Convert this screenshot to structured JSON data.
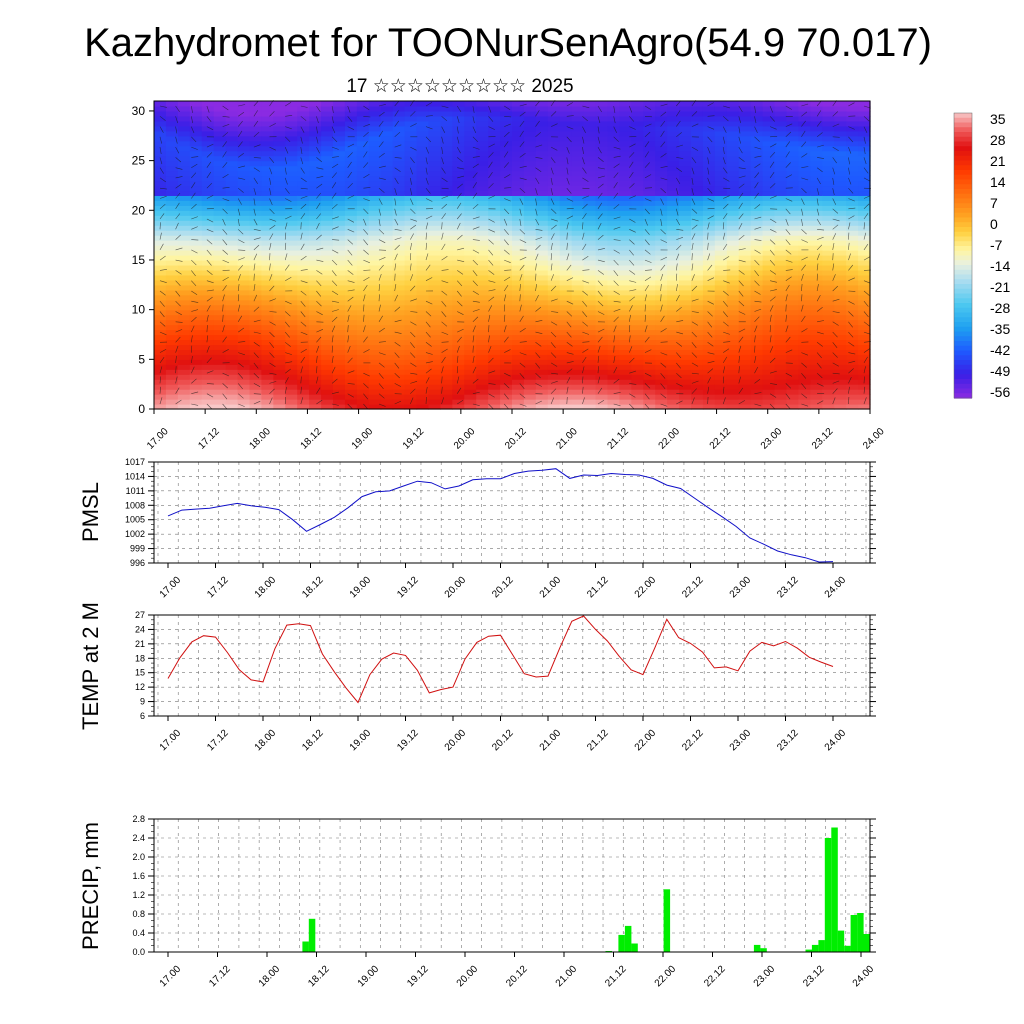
{
  "header": {
    "title": "Kazhydromet for TOONurSenAgro(54.9 70.017)",
    "subtitle": "17 ☆☆☆☆☆☆☆☆☆ 2025"
  },
  "chart_data": [
    {
      "type": "heatmap",
      "id": "temperature-wind-cross-section",
      "title": "",
      "x_ticks": [
        "17.00",
        "17.12",
        "18.00",
        "18.12",
        "19.00",
        "19.12",
        "20.00",
        "20.12",
        "21.00",
        "21.12",
        "22.00",
        "22.12",
        "23.00",
        "23.12",
        "24.00"
      ],
      "y_ticks": [
        0,
        5,
        10,
        15,
        20,
        25,
        30
      ],
      "ylim": [
        0,
        31
      ],
      "colorbar": {
        "labels": [
          "35",
          "28",
          "21",
          "14",
          "7",
          "0",
          "-7",
          "-14",
          "-21",
          "-28",
          "-35",
          "-42",
          "-49",
          "-56"
        ],
        "range": [
          -60,
          38
        ],
        "stops": [
          {
            "v": -60,
            "color": "#8a2be2"
          },
          {
            "v": -52,
            "color": "#3a1fe6"
          },
          {
            "v": -44,
            "color": "#1e5aff"
          },
          {
            "v": -36,
            "color": "#1ea0f0"
          },
          {
            "v": -28,
            "color": "#4cc8f0"
          },
          {
            "v": -20,
            "color": "#a8dcf0"
          },
          {
            "v": -14,
            "color": "#e8f0e0"
          },
          {
            "v": -9,
            "color": "#fff5a0"
          },
          {
            "v": -3,
            "color": "#ffd040"
          },
          {
            "v": 3,
            "color": "#ffa020"
          },
          {
            "v": 10,
            "color": "#ff7010"
          },
          {
            "v": 18,
            "color": "#ff3a00"
          },
          {
            "v": 26,
            "color": "#e01010"
          },
          {
            "v": 32,
            "color": "#f05a5a"
          },
          {
            "v": 38,
            "color": "#f8c8c8"
          }
        ]
      },
      "grid": false
    },
    {
      "type": "line",
      "id": "pmsl",
      "ylabel": "PMSL",
      "color": "#1010c8",
      "x_ticks": [
        "17.00",
        "17.12",
        "18.00",
        "18.12",
        "19.00",
        "19.12",
        "20.00",
        "20.12",
        "21.00",
        "21.12",
        "22.00",
        "22.12",
        "23.00",
        "23.12",
        "24.00"
      ],
      "y_ticks": [
        "1017",
        "1014",
        "1011",
        "1008",
        "1005",
        "1002",
        "999",
        "996"
      ],
      "ylim": [
        996,
        1017
      ],
      "grid": true,
      "values": [
        1005.8,
        1007,
        1007.2,
        1007.4,
        1007.9,
        1008.4,
        1007.9,
        1007.6,
        1007.1,
        1005,
        1002.6,
        1004,
        1005.5,
        1007.5,
        1009.8,
        1010.8,
        1011,
        1012,
        1013,
        1012.7,
        1011.4,
        1012,
        1013.3,
        1013.5,
        1013.5,
        1014.6,
        1015.1,
        1015.3,
        1015.6,
        1013.6,
        1014.3,
        1014.2,
        1014.6,
        1014.4,
        1014.3,
        1013.6,
        1012.2,
        1011.5,
        1009.5,
        1007.5,
        1005.6,
        1003.6,
        1001.2,
        999.9,
        998.5,
        997.7,
        997.1,
        996.2,
        996.3
      ]
    },
    {
      "type": "line",
      "id": "temp-2m",
      "ylabel": "TEMP at 2 M",
      "color": "#d01010",
      "x_ticks": [
        "17.00",
        "17.12",
        "18.00",
        "18.12",
        "19.00",
        "19.12",
        "20.00",
        "20.12",
        "21.00",
        "21.12",
        "22.00",
        "22.12",
        "23.00",
        "23.12",
        "24.00"
      ],
      "y_ticks": [
        "27",
        "24",
        "21",
        "18",
        "15",
        "12",
        "9",
        "6"
      ],
      "ylim": [
        6,
        27
      ],
      "grid": true,
      "values": [
        13.8,
        18.1,
        21.4,
        22.7,
        22.4,
        19.2,
        15.6,
        13.5,
        13.1,
        20,
        24.9,
        25.2,
        24.8,
        18.9,
        15.2,
        11.8,
        8.8,
        14.6,
        17.8,
        19.1,
        18.6,
        15.5,
        10.8,
        11.5,
        12,
        17.8,
        21.3,
        22.6,
        22.8,
        18.8,
        14.8,
        14.1,
        14.3,
        20.2,
        25.7,
        26.8,
        24,
        21.6,
        18.4,
        15.6,
        14.6,
        20.2,
        26.1,
        22.3,
        21.1,
        19.3,
        16,
        16.2,
        15.4,
        19.5,
        21.3,
        20.6,
        21.5,
        20.1,
        18.2,
        17.2,
        16.3
      ]
    },
    {
      "type": "bar",
      "id": "precip",
      "ylabel": "PRECIP, mm",
      "color": "#00ee00",
      "x_ticks": [
        "17.00",
        "17.12",
        "18.00",
        "18.12",
        "19.00",
        "19.12",
        "20.00",
        "20.12",
        "21.00",
        "21.12",
        "22.00",
        "22.12",
        "23.00",
        "23.12",
        "24.00"
      ],
      "y_ticks": [
        "2.8",
        "2.4",
        "2.0",
        "1.6",
        "1.2",
        "0.8",
        "0.4",
        "0.0"
      ],
      "ylim": [
        0,
        2.8
      ],
      "grid": true,
      "values": [
        0,
        0,
        0,
        0,
        0,
        0,
        0,
        0,
        0,
        0,
        0,
        0,
        0,
        0,
        0,
        0,
        0,
        0,
        0,
        0,
        0,
        0,
        0,
        0.22,
        0.7,
        0,
        0,
        0,
        0,
        0,
        0,
        0,
        0,
        0,
        0,
        0,
        0,
        0,
        0,
        0,
        0,
        0,
        0,
        0,
        0,
        0,
        0,
        0,
        0,
        0,
        0,
        0,
        0,
        0,
        0,
        0,
        0,
        0,
        0,
        0,
        0,
        0,
        0,
        0,
        0,
        0,
        0,
        0,
        0,
        0,
        0.02,
        0,
        0.36,
        0.55,
        0.18,
        0,
        0,
        0,
        0,
        1.32,
        0,
        0,
        0,
        0,
        0,
        0,
        0,
        0,
        0,
        0,
        0,
        0,
        0,
        0.15,
        0.08,
        0,
        0,
        0,
        0,
        0,
        0,
        0.05,
        0.15,
        0.25,
        2.4,
        2.62,
        0.45,
        0.13,
        0.78,
        0.82,
        0.38
      ]
    }
  ]
}
